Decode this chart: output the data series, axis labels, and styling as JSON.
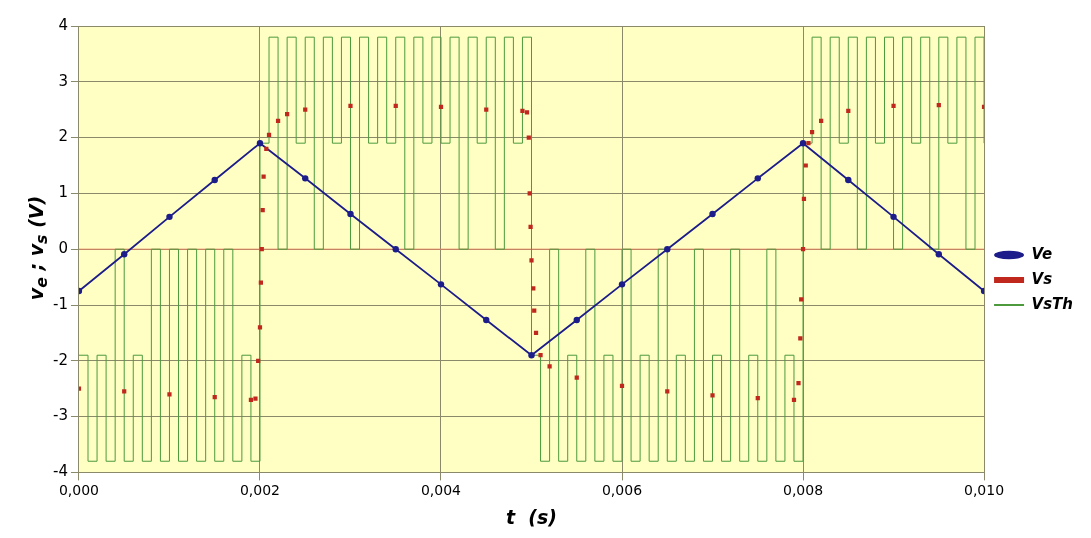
{
  "chart_data": {
    "type": "line",
    "xlabel": "t  (s)",
    "ylabel": "v$_{e}$ ; v$_{s}$ (V)",
    "xlim": [
      0,
      0.01
    ],
    "xticks": [
      {
        "value": 0,
        "label": "0,000"
      },
      {
        "value": 0.002,
        "label": "0,002"
      },
      {
        "value": 0.004,
        "label": "0,004"
      },
      {
        "value": 0.006,
        "label": "0,006"
      },
      {
        "value": 0.008,
        "label": "0,008"
      },
      {
        "value": 0.01,
        "label": "0,010"
      }
    ],
    "ylim": [
      -4,
      4
    ],
    "yticks": [
      -4,
      -3,
      -2,
      -1,
      0,
      1,
      2,
      3,
      4
    ],
    "grid": true,
    "legend": "right",
    "ref_lines": [
      {
        "axis": "y",
        "value": 0,
        "color": "#e08060"
      }
    ],
    "series": [
      {
        "name": "Ve",
        "type": "line",
        "marker": "circle",
        "color": "#1c1c8a",
        "x": [
          0,
          0.0005,
          0.001,
          0.0015,
          0.002,
          0.0025,
          0.003,
          0.0035,
          0.004,
          0.0045,
          0.005,
          0.0055,
          0.006,
          0.0065,
          0.007,
          0.0075,
          0.008,
          0.0085,
          0.009,
          0.0095,
          0.01
        ],
        "values": [
          -0.75,
          -0.09,
          0.58,
          1.24,
          1.9,
          1.27,
          0.63,
          0,
          -0.63,
          -1.27,
          -1.9,
          -1.27,
          -0.63,
          0,
          0.63,
          1.27,
          1.9,
          1.24,
          0.58,
          -0.09,
          -0.75
        ]
      },
      {
        "name": "Vs",
        "type": "scatter",
        "marker": "square",
        "color": "#c0281e",
        "x": [
          0,
          0.0005,
          0.001,
          0.0015,
          0.0019,
          0.00195,
          0.00198,
          0.002,
          0.00201,
          0.00202,
          0.00203,
          0.00204,
          0.00207,
          0.0021,
          0.0022,
          0.0023,
          0.0025,
          0.003,
          0.0035,
          0.004,
          0.0045,
          0.0049,
          0.00495,
          0.00497,
          0.00498,
          0.00499,
          0.005,
          0.00502,
          0.00503,
          0.00505,
          0.0051,
          0.0052,
          0.0055,
          0.006,
          0.0065,
          0.007,
          0.0075,
          0.0079,
          0.00795,
          0.00797,
          0.00798,
          0.008,
          0.00801,
          0.00803,
          0.00806,
          0.0081,
          0.0082,
          0.0085,
          0.009,
          0.0095,
          0.01
        ],
        "values": [
          -2.5,
          -2.55,
          -2.6,
          -2.65,
          -2.7,
          -2.68,
          -2.0,
          -1.4,
          -0.6,
          0,
          0.7,
          1.3,
          1.8,
          2.05,
          2.3,
          2.42,
          2.5,
          2.57,
          2.57,
          2.55,
          2.5,
          2.48,
          2.45,
          2.0,
          1.0,
          0.4,
          -0.2,
          -0.7,
          -1.1,
          -1.5,
          -1.9,
          -2.1,
          -2.3,
          -2.45,
          -2.55,
          -2.62,
          -2.67,
          -2.7,
          -2.4,
          -1.6,
          -0.9,
          0,
          0.9,
          1.5,
          1.9,
          2.1,
          2.3,
          2.48,
          2.57,
          2.58,
          2.55
        ]
      },
      {
        "name": "VsTh",
        "type": "step",
        "marker": "none",
        "color": "#4c9a3c",
        "x": [
          0,
          0.0001,
          0.0002,
          0.0003,
          0.0004,
          0.0005,
          0.0006,
          0.0007,
          0.0008,
          0.0009,
          0.001,
          0.0011,
          0.0012,
          0.0013,
          0.0014,
          0.0015,
          0.0016,
          0.0017,
          0.0018,
          0.0019,
          0.002,
          0.0021,
          0.0022,
          0.0023,
          0.0024,
          0.0025,
          0.0026,
          0.0027,
          0.0028,
          0.0029,
          0.003,
          0.0031,
          0.0032,
          0.0033,
          0.0034,
          0.0035,
          0.0036,
          0.0037,
          0.0038,
          0.0039,
          0.004,
          0.0041,
          0.0042,
          0.0043,
          0.0044,
          0.0045,
          0.0046,
          0.0047,
          0.0048,
          0.0049,
          0.005,
          0.0051,
          0.0052,
          0.0053,
          0.0054,
          0.0055,
          0.0056,
          0.0057,
          0.0058,
          0.0059,
          0.006,
          0.0061,
          0.0062,
          0.0063,
          0.0064,
          0.0065,
          0.0066,
          0.0067,
          0.0068,
          0.0069,
          0.007,
          0.0071,
          0.0072,
          0.0073,
          0.0074,
          0.0075,
          0.0076,
          0.0077,
          0.0078,
          0.0079,
          0.008,
          0.0081,
          0.0082,
          0.0083,
          0.0084,
          0.0085,
          0.0086,
          0.0087,
          0.0088,
          0.0089,
          0.009,
          0.0091,
          0.0092,
          0.0093,
          0.0094,
          0.0095,
          0.0096,
          0.0097,
          0.0098,
          0.0099,
          0.01
        ],
        "values": [
          -1.9,
          -3.8,
          -1.9,
          -3.8,
          0,
          -3.8,
          -1.9,
          -3.8,
          0,
          -3.8,
          0,
          -3.8,
          0,
          -3.8,
          0,
          -3.8,
          0,
          -3.8,
          -1.9,
          -3.8,
          1.9,
          3.8,
          0,
          3.8,
          1.9,
          3.8,
          0,
          3.8,
          1.9,
          3.8,
          0,
          3.8,
          1.9,
          3.8,
          1.9,
          3.8,
          0,
          3.8,
          1.9,
          3.8,
          1.9,
          3.8,
          0,
          3.8,
          1.9,
          3.8,
          0,
          3.8,
          1.9,
          3.8,
          -1.9,
          -3.8,
          0,
          -3.8,
          -1.9,
          -3.8,
          0,
          -3.8,
          -1.9,
          -3.8,
          0,
          -3.8,
          -1.9,
          -3.8,
          0,
          -3.8,
          -1.9,
          -3.8,
          0,
          -3.8,
          -1.9,
          -3.8,
          0,
          -3.8,
          -1.9,
          -3.8,
          0,
          -3.8,
          -1.9,
          -3.8,
          1.9,
          3.8,
          0,
          3.8,
          1.9,
          3.8,
          0,
          3.8,
          1.9,
          3.8,
          0,
          3.8,
          1.9,
          3.8,
          0,
          3.8,
          1.9,
          3.8,
          0,
          3.8,
          1.9
        ]
      }
    ]
  }
}
